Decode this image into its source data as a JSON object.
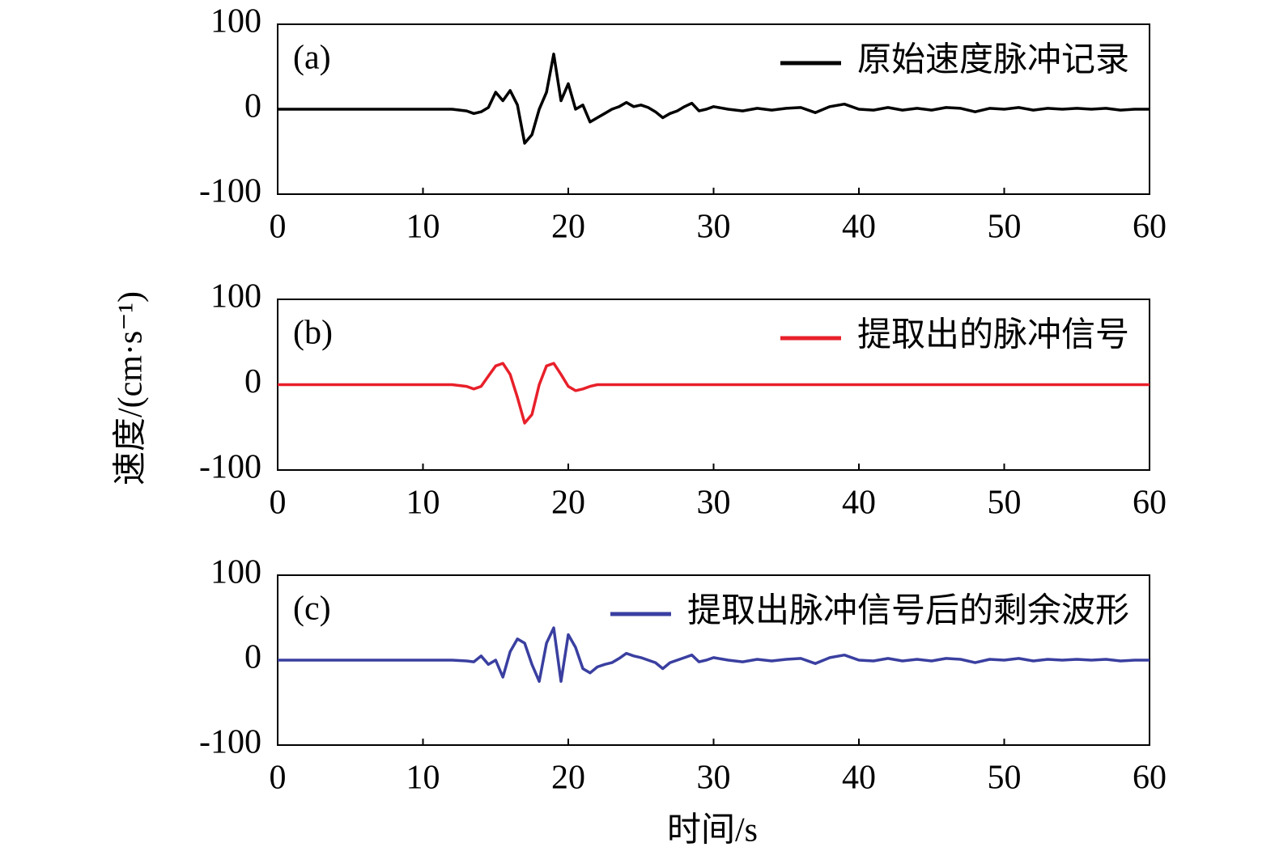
{
  "chart_data": [
    {
      "type": "line",
      "annotation": "(a)",
      "legend": "upper right",
      "x": [
        0,
        1,
        2,
        3,
        4,
        5,
        6,
        7,
        8,
        9,
        10,
        11,
        12,
        13,
        13.5,
        14,
        14.5,
        15,
        15.5,
        16,
        16.5,
        17,
        17.5,
        18,
        18.5,
        19,
        19.5,
        20,
        20.5,
        21,
        21.5,
        22,
        22.5,
        23,
        23.5,
        24,
        24.5,
        25,
        25.5,
        26,
        26.5,
        27,
        27.5,
        28,
        28.5,
        29,
        29.5,
        30,
        31,
        32,
        33,
        34,
        35,
        36,
        37,
        38,
        39,
        40,
        41,
        42,
        43,
        44,
        45,
        46,
        47,
        48,
        49,
        50,
        51,
        52,
        53,
        54,
        55,
        56,
        57,
        58,
        59,
        60
      ],
      "series": [
        {
          "name": "原始速度脉冲记录",
          "color": "#000000",
          "values": [
            0,
            0,
            0,
            0,
            0,
            0,
            0,
            0,
            0,
            0,
            0,
            0,
            0,
            -2,
            -5,
            -3,
            2,
            20,
            10,
            22,
            5,
            -40,
            -30,
            0,
            20,
            65,
            10,
            30,
            0,
            5,
            -15,
            -10,
            -5,
            0,
            3,
            8,
            3,
            5,
            2,
            -3,
            -10,
            -5,
            -2,
            3,
            7,
            -2,
            0,
            3,
            0,
            -2,
            1,
            -1,
            1,
            2,
            -4,
            3,
            6,
            0,
            -1,
            2,
            -1,
            1,
            -1,
            2,
            1,
            -3,
            1,
            0,
            2,
            -1,
            1,
            0,
            1,
            0,
            1,
            -1,
            0,
            0
          ]
        }
      ],
      "xlim": [
        0,
        60
      ],
      "ylim": [
        -100,
        100
      ],
      "xticks": [
        0,
        10,
        20,
        30,
        40,
        50,
        60
      ],
      "yticks": [
        -100,
        0,
        100
      ]
    },
    {
      "type": "line",
      "annotation": "(b)",
      "legend": "upper right",
      "ylabel": "速度/(cm·s⁻¹)",
      "x": [
        0,
        1,
        2,
        3,
        4,
        5,
        6,
        7,
        8,
        9,
        10,
        11,
        12,
        13,
        13.5,
        14,
        14.5,
        15,
        15.5,
        16,
        16.5,
        17,
        17.5,
        18,
        18.5,
        19,
        19.5,
        20,
        20.5,
        21,
        21.5,
        22,
        22.5,
        23,
        23.5,
        24,
        24.5,
        25,
        25.5,
        26,
        26.5,
        27,
        27.5,
        28,
        28.5,
        29,
        29.5,
        30,
        31,
        32,
        33,
        34,
        35,
        36,
        37,
        38,
        39,
        40,
        41,
        42,
        43,
        44,
        45,
        46,
        47,
        48,
        49,
        50,
        51,
        52,
        53,
        54,
        55,
        56,
        57,
        58,
        59,
        60
      ],
      "series": [
        {
          "name": "提取出的脉冲信号",
          "color": "#e8202a",
          "values": [
            0,
            0,
            0,
            0,
            0,
            0,
            0,
            0,
            0,
            0,
            0,
            0,
            0,
            -2,
            -5,
            -2,
            10,
            22,
            25,
            12,
            -15,
            -45,
            -35,
            0,
            22,
            25,
            12,
            -2,
            -7,
            -5,
            -2,
            0,
            0,
            0,
            0,
            0,
            0,
            0,
            0,
            0,
            0,
            0,
            0,
            0,
            0,
            0,
            0,
            0,
            0,
            0,
            0,
            0,
            0,
            0,
            0,
            0,
            0,
            0,
            0,
            0,
            0,
            0,
            0,
            0,
            0,
            0,
            0,
            0,
            0,
            0,
            0,
            0,
            0,
            0,
            0,
            0,
            0,
            0
          ]
        }
      ],
      "xlim": [
        0,
        60
      ],
      "ylim": [
        -100,
        100
      ],
      "xticks": [
        0,
        10,
        20,
        30,
        40,
        50,
        60
      ],
      "yticks": [
        -100,
        0,
        100
      ]
    },
    {
      "type": "line",
      "annotation": "(c)",
      "legend": "upper right",
      "xlabel": "时间/s",
      "x": [
        0,
        1,
        2,
        3,
        4,
        5,
        6,
        7,
        8,
        9,
        10,
        11,
        12,
        13,
        13.5,
        14,
        14.5,
        15,
        15.5,
        16,
        16.5,
        17,
        17.5,
        18,
        18.5,
        19,
        19.5,
        20,
        20.5,
        21,
        21.5,
        22,
        22.5,
        23,
        23.5,
        24,
        24.5,
        25,
        25.5,
        26,
        26.5,
        27,
        27.5,
        28,
        28.5,
        29,
        29.5,
        30,
        31,
        32,
        33,
        34,
        35,
        36,
        37,
        38,
        39,
        40,
        41,
        42,
        43,
        44,
        45,
        46,
        47,
        48,
        49,
        50,
        51,
        52,
        53,
        54,
        55,
        56,
        57,
        58,
        59,
        60
      ],
      "series": [
        {
          "name": "提取出脉冲信号后的剩余波形",
          "color": "#3a3fa0",
          "values": [
            0,
            0,
            0,
            0,
            0,
            0,
            0,
            0,
            0,
            0,
            0,
            0,
            0,
            -1,
            -2,
            5,
            -5,
            0,
            -20,
            10,
            25,
            20,
            -5,
            -25,
            20,
            38,
            -25,
            30,
            15,
            -10,
            -15,
            -8,
            -5,
            -3,
            2,
            8,
            5,
            3,
            0,
            -3,
            -10,
            -3,
            0,
            3,
            6,
            -2,
            0,
            3,
            0,
            -2,
            1,
            -1,
            1,
            2,
            -4,
            3,
            6,
            0,
            -1,
            2,
            -1,
            1,
            -1,
            2,
            1,
            -3,
            1,
            0,
            2,
            -1,
            1,
            0,
            1,
            0,
            1,
            -1,
            0,
            0
          ]
        }
      ],
      "xlim": [
        0,
        60
      ],
      "ylim": [
        -100,
        100
      ],
      "xticks": [
        0,
        10,
        20,
        30,
        40,
        50,
        60
      ],
      "yticks": [
        -100,
        0,
        100
      ]
    }
  ]
}
